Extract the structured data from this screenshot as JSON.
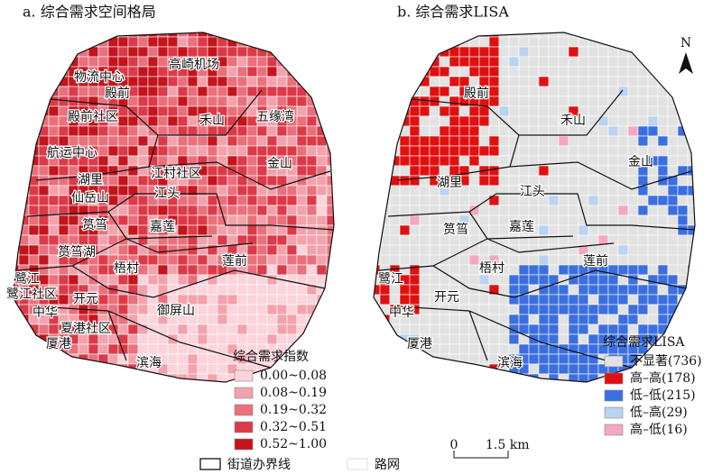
{
  "panels": [
    {
      "title": "a. 综合需求空间格局",
      "places": [
        "物流中心",
        "殿前",
        "高崎机场",
        "殿前社区",
        "禾山",
        "五缘湾",
        "航运中心",
        "金山",
        "江村社区",
        "湖里",
        "仙岳山",
        "江头",
        "筼筜",
        "嘉莲",
        "筼筜湖",
        "莲前",
        "梧村",
        "鹭江",
        "鹭江社区",
        "开元",
        "中华",
        "御屏山",
        "夏港社区",
        "厦港",
        "滨海"
      ],
      "legend": {
        "title": "综合需求指数",
        "items": [
          {
            "label": "0.00~0.08",
            "color": "#fbd3da"
          },
          {
            "label": "0.08~0.19",
            "color": "#f3a2ac"
          },
          {
            "label": "0.19~0.32",
            "color": "#ea707c"
          },
          {
            "label": "0.32~0.51",
            "color": "#dc3a48"
          },
          {
            "label": "0.52~1.00",
            "color": "#c4141c"
          }
        ]
      }
    },
    {
      "title": "b. 综合需求LISA",
      "places": [
        "殿前",
        "禾山",
        "金山",
        "湖里",
        "江头",
        "筼筜",
        "嘉莲",
        "莲前",
        "梧村",
        "鹭江",
        "开元",
        "中华",
        "厦港",
        "滨海"
      ],
      "legend": {
        "title": "综合需求LISA",
        "items": [
          {
            "label": "不显著(736)",
            "color": "#e2e2e2"
          },
          {
            "label": "高–高(178)",
            "color": "#e01010"
          },
          {
            "label": "低–低(215)",
            "color": "#3b6fe0"
          },
          {
            "label": "低–高(29)",
            "color": "#b9d3f0"
          },
          {
            "label": "高–低(16)",
            "color": "#f4a8c0"
          }
        ]
      }
    }
  ],
  "north": "N",
  "scale_bar": {
    "zero": "0",
    "label": "1.5 km"
  },
  "bottom_legend": [
    "街道办界线",
    "路网"
  ]
}
